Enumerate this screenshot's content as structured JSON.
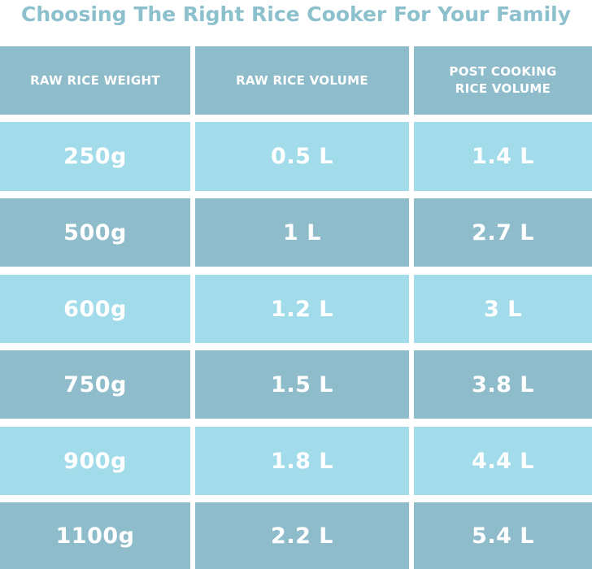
{
  "title": "Choosing The Right Rice Cooker For Your Family",
  "table": {
    "headers": [
      "RAW RICE WEIGHT",
      "RAW RICE VOLUME",
      "POST COOKING RICE VOLUME"
    ],
    "header_lines": {
      "col3_line1": "POST COOKING",
      "col3_line2": "RICE VOLUME"
    },
    "rows": [
      [
        "250g",
        "0.5 L",
        "1.4 L"
      ],
      [
        "500g",
        "1 L",
        "2.7 L"
      ],
      [
        "600g",
        "1.2 L",
        "3 L"
      ],
      [
        "750g",
        "1.5 L",
        "3.8 L"
      ],
      [
        "900g",
        "1.8 L",
        "4.4 L"
      ],
      [
        "1100g",
        "2.2 L",
        "5.4 L"
      ]
    ]
  },
  "colors": {
    "title": "#8cc0cd",
    "header_bg": "#8ebccb",
    "row_light": "#a2dceb",
    "row_dark": "#8ebccb",
    "text": "#ffffff"
  }
}
